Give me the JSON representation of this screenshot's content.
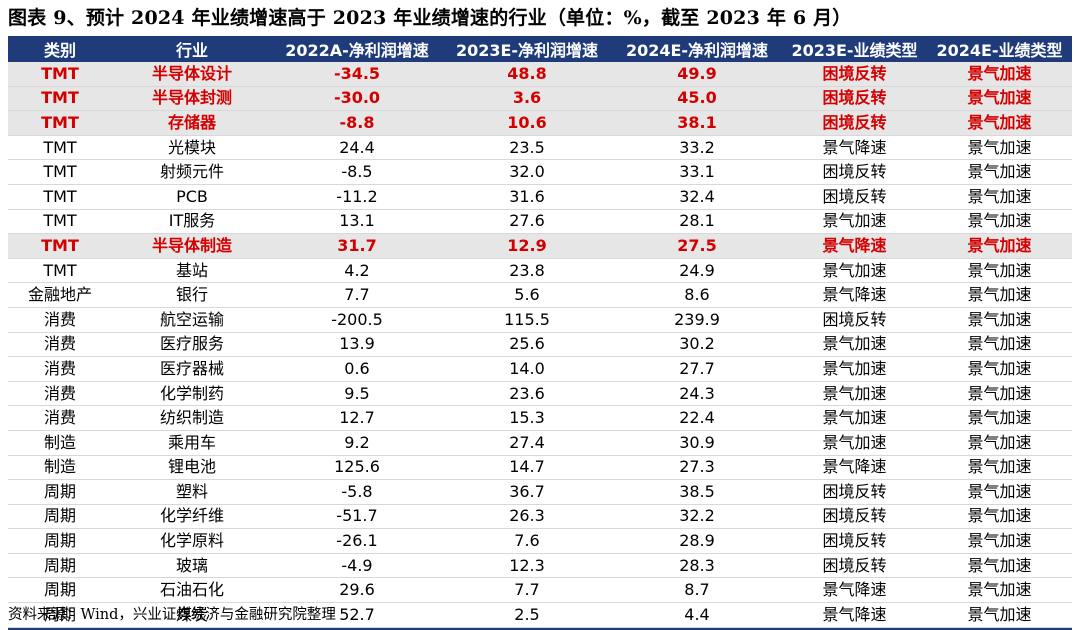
{
  "title": "图表 9、预计 2024 年业绩增速高于 2023 年业绩增速的行业（单位：%，截至 2023 年 6 月）",
  "headers": [
    "类别",
    "行业",
    "2022A-净利润增速",
    "2023E-净利润增速",
    "2024E-净利润增速",
    "2023E-业绩类型",
    "2024E-业绩类型"
  ],
  "rows": [
    {
      "cells": [
        "TMT",
        "半导体设计",
        "-34.5",
        "48.8",
        "49.9",
        "困境反转",
        "景气加速"
      ],
      "highlight": true
    },
    {
      "cells": [
        "TMT",
        "半导体封测",
        "-30.0",
        "3.6",
        "45.0",
        "困境反转",
        "景气加速"
      ],
      "highlight": true
    },
    {
      "cells": [
        "TMT",
        "存储器",
        "-8.8",
        "10.6",
        "38.1",
        "困境反转",
        "景气加速"
      ],
      "highlight": true
    },
    {
      "cells": [
        "TMT",
        "光模块",
        "24.4",
        "23.5",
        "33.2",
        "景气降速",
        "景气加速"
      ],
      "highlight": false
    },
    {
      "cells": [
        "TMT",
        "射频元件",
        "-8.5",
        "32.0",
        "33.1",
        "困境反转",
        "景气加速"
      ],
      "highlight": false
    },
    {
      "cells": [
        "TMT",
        "PCB",
        "-11.2",
        "31.6",
        "32.4",
        "困境反转",
        "景气加速"
      ],
      "highlight": false
    },
    {
      "cells": [
        "TMT",
        "IT服务",
        "13.1",
        "27.6",
        "28.1",
        "景气加速",
        "景气加速"
      ],
      "highlight": false
    },
    {
      "cells": [
        "TMT",
        "半导体制造",
        "31.7",
        "12.9",
        "27.5",
        "景气降速",
        "景气加速"
      ],
      "highlight": true
    },
    {
      "cells": [
        "TMT",
        "基站",
        "4.2",
        "23.8",
        "24.9",
        "景气加速",
        "景气加速"
      ],
      "highlight": false
    },
    {
      "cells": [
        "金融地产",
        "银行",
        "7.7",
        "5.6",
        "8.6",
        "景气降速",
        "景气加速"
      ],
      "highlight": false
    },
    {
      "cells": [
        "消费",
        "航空运输",
        "-200.5",
        "115.5",
        "239.9",
        "困境反转",
        "景气加速"
      ],
      "highlight": false
    },
    {
      "cells": [
        "消费",
        "医疗服务",
        "13.9",
        "25.6",
        "30.2",
        "景气加速",
        "景气加速"
      ],
      "highlight": false
    },
    {
      "cells": [
        "消费",
        "医疗器械",
        "0.6",
        "14.0",
        "27.7",
        "景气加速",
        "景气加速"
      ],
      "highlight": false
    },
    {
      "cells": [
        "消费",
        "化学制药",
        "9.5",
        "23.6",
        "24.3",
        "景气加速",
        "景气加速"
      ],
      "highlight": false
    },
    {
      "cells": [
        "消费",
        "纺织制造",
        "12.7",
        "15.3",
        "22.4",
        "景气加速",
        "景气加速"
      ],
      "highlight": false
    },
    {
      "cells": [
        "制造",
        "乘用车",
        "9.2",
        "27.4",
        "30.9",
        "景气加速",
        "景气加速"
      ],
      "highlight": false
    },
    {
      "cells": [
        "制造",
        "锂电池",
        "125.6",
        "14.7",
        "27.3",
        "景气降速",
        "景气加速"
      ],
      "highlight": false
    },
    {
      "cells": [
        "周期",
        "塑料",
        "-5.8",
        "36.7",
        "38.5",
        "困境反转",
        "景气加速"
      ],
      "highlight": false
    },
    {
      "cells": [
        "周期",
        "化学纤维",
        "-51.7",
        "26.3",
        "32.2",
        "困境反转",
        "景气加速"
      ],
      "highlight": false
    },
    {
      "cells": [
        "周期",
        "化学原料",
        "-26.1",
        "7.6",
        "28.9",
        "困境反转",
        "景气加速"
      ],
      "highlight": false
    },
    {
      "cells": [
        "周期",
        "玻璃",
        "-4.9",
        "12.3",
        "28.3",
        "困境反转",
        "景气加速"
      ],
      "highlight": false
    },
    {
      "cells": [
        "周期",
        "石油石化",
        "29.6",
        "7.7",
        "8.7",
        "景气降速",
        "景气加速"
      ],
      "highlight": false
    },
    {
      "cells": [
        "周期",
        "煤炭",
        "52.7",
        "2.5",
        "4.4",
        "景气降速",
        "景气加速"
      ],
      "highlight": false
    }
  ],
  "source": "资料来源：Wind，兴业证券经济与金融研究院整理",
  "colors": {
    "header_bg": "#1f3b7a",
    "header_text": "#ffffff",
    "highlight_text": "#d40000",
    "highlight_bg": "#e6e6e6"
  }
}
